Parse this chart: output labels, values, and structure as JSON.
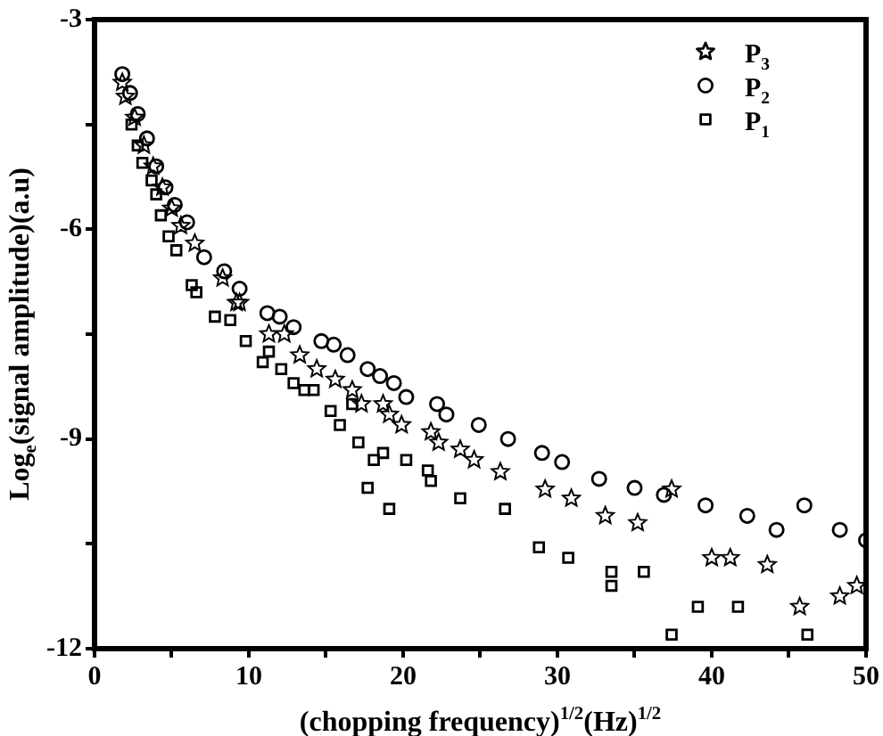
{
  "chart_data": {
    "type": "scatter",
    "xlabel": "(chopping frequency)$^{1/2}$(Hz)$^{1/2}$",
    "ylabel": "Log$_{e}$(signal amplitude)(a.u)",
    "xlim": [
      0,
      50
    ],
    "ylim": [
      -12,
      -3
    ],
    "xticks": [
      0,
      {
        "value": 5,
        "label": null
      },
      10,
      {
        "value": 15,
        "label": null
      },
      20,
      {
        "value": 25,
        "label": null
      },
      30,
      {
        "value": 35,
        "label": null
      },
      40,
      {
        "value": 45,
        "label": null
      },
      50
    ],
    "yticks": [
      -12,
      {
        "value": -10.5,
        "label": null
      },
      -9,
      {
        "value": -7.5,
        "label": null
      },
      -6,
      {
        "value": -4.5,
        "label": null
      },
      -3
    ],
    "legend": "top right",
    "series": [
      {
        "name": "P$_{3}$",
        "color": "#000000",
        "marker": "star",
        "x": [
          1.8,
          2.0,
          2.6,
          3.2,
          3.8,
          4.4,
          5.0,
          5.6,
          6.5,
          8.3,
          9.2,
          9.4,
          11.3,
          12.3,
          13.3,
          14.4,
          15.6,
          16.7,
          17.3,
          18.7,
          19.1,
          19.9,
          21.8,
          22.3,
          23.7,
          24.6,
          26.3,
          29.2,
          30.9,
          33.1,
          35.2,
          37.4,
          40.0,
          41.2,
          43.6,
          45.7,
          48.3,
          49.4
        ],
        "values": [
          -3.9,
          -4.1,
          -4.4,
          -4.8,
          -5.1,
          -5.4,
          -5.7,
          -5.95,
          -6.2,
          -6.7,
          -7.05,
          -7.05,
          -7.5,
          -7.5,
          -7.8,
          -8.0,
          -8.15,
          -8.3,
          -8.5,
          -8.5,
          -8.65,
          -8.8,
          -8.9,
          -9.05,
          -9.15,
          -9.3,
          -9.47,
          -9.72,
          -9.85,
          -10.1,
          -10.2,
          -9.72,
          -10.7,
          -10.7,
          -10.8,
          -11.4,
          -11.25,
          -11.1
        ]
      },
      {
        "name": "P$_{2}$",
        "color": "#000000",
        "marker": "circle",
        "x": [
          1.8,
          2.3,
          2.8,
          3.4,
          4.0,
          4.6,
          5.2,
          6.0,
          7.1,
          8.4,
          9.4,
          11.2,
          12.0,
          12.9,
          14.7,
          15.5,
          16.4,
          17.7,
          18.5,
          19.4,
          20.2,
          22.2,
          22.8,
          24.9,
          26.8,
          29.0,
          30.3,
          32.7,
          35.0,
          36.9,
          39.6,
          42.3,
          44.2,
          46.0,
          48.3,
          50.0
        ],
        "values": [
          -3.78,
          -4.05,
          -4.35,
          -4.7,
          -5.1,
          -5.4,
          -5.65,
          -5.9,
          -6.4,
          -6.6,
          -6.85,
          -7.2,
          -7.25,
          -7.4,
          -7.6,
          -7.65,
          -7.8,
          -8.0,
          -8.1,
          -8.2,
          -8.4,
          -8.5,
          -8.65,
          -8.8,
          -9.0,
          -9.2,
          -9.33,
          -9.57,
          -9.7,
          -9.8,
          -9.95,
          -10.1,
          -10.3,
          -9.95,
          -10.3,
          -10.45
        ]
      },
      {
        "name": "P$_{1}$",
        "color": "#000000",
        "marker": "square",
        "x": [
          2.4,
          2.8,
          3.1,
          3.7,
          4.0,
          4.3,
          4.8,
          5.3,
          6.3,
          6.6,
          7.8,
          8.8,
          9.8,
          10.9,
          11.3,
          12.1,
          12.9,
          13.6,
          14.2,
          15.3,
          15.9,
          16.7,
          17.1,
          17.7,
          18.1,
          18.7,
          19.1,
          20.2,
          21.6,
          21.8,
          23.7,
          26.6,
          28.8,
          30.7,
          33.5,
          33.5,
          35.6,
          37.4,
          39.1,
          41.7,
          46.2
        ],
        "values": [
          -4.5,
          -4.8,
          -5.05,
          -5.3,
          -5.5,
          -5.8,
          -6.1,
          -6.3,
          -6.8,
          -6.9,
          -7.25,
          -7.3,
          -7.6,
          -7.9,
          -7.75,
          -8.0,
          -8.2,
          -8.3,
          -8.3,
          -8.6,
          -8.8,
          -8.5,
          -9.05,
          -9.7,
          -9.3,
          -9.2,
          -10.0,
          -9.3,
          -9.45,
          -9.6,
          -9.85,
          -10.0,
          -10.55,
          -10.7,
          -10.9,
          -11.1,
          -10.9,
          -11.8,
          -11.4,
          -11.4,
          -11.8
        ]
      }
    ]
  }
}
